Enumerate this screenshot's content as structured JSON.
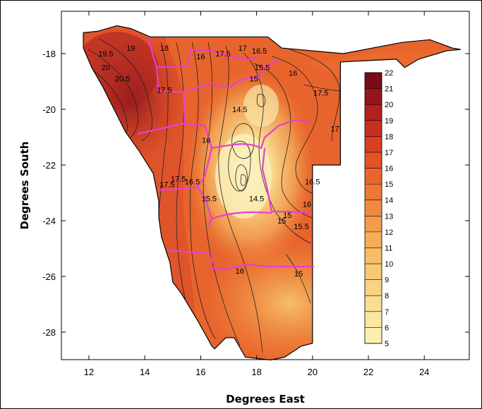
{
  "chart_data": {
    "type": "contour-map",
    "xlabel": "Degrees East",
    "ylabel": "Degrees South",
    "xlim": [
      11,
      25.5
    ],
    "ylim": [
      -29,
      -16.7
    ],
    "x_ticks": [
      12,
      14,
      16,
      18,
      20,
      22,
      24
    ],
    "y_ticks": [
      -18,
      -20,
      -22,
      -24,
      -26,
      -28
    ],
    "colorbar": {
      "min": 5,
      "max": 22,
      "labels": [
        22,
        21,
        20,
        19,
        18,
        17,
        16,
        15,
        14,
        13,
        12,
        11,
        10,
        9,
        8,
        7,
        6,
        5
      ],
      "colors": [
        "#fbf6c0",
        "#fbf0b0",
        "#fae7a0",
        "#f9de90",
        "#f8d482",
        "#f7c973",
        "#f6bc66",
        "#f5ad58",
        "#f39c4c",
        "#f18a40",
        "#ee7835",
        "#ea652c",
        "#e45226",
        "#d93f22",
        "#c92e20",
        "#b3201e",
        "#97141b",
        "#790c16"
      ]
    },
    "contour_labels": [
      {
        "text": "19",
        "lon": 13.5,
        "lat": -17.9
      },
      {
        "text": "19.5",
        "lon": 12.6,
        "lat": -18.1
      },
      {
        "text": "20",
        "lon": 12.6,
        "lat": -18.6
      },
      {
        "text": "20.5",
        "lon": 13.2,
        "lat": -19.0
      },
      {
        "text": "17.5",
        "lon": 14.7,
        "lat": -19.4
      },
      {
        "text": "18",
        "lon": 14.7,
        "lat": -17.9
      },
      {
        "text": "16",
        "lon": 16.0,
        "lat": -18.2
      },
      {
        "text": "17.5",
        "lon": 16.8,
        "lat": -18.1
      },
      {
        "text": "17",
        "lon": 17.5,
        "lat": -17.9
      },
      {
        "text": "16.5",
        "lon": 18.1,
        "lat": -18.0
      },
      {
        "text": "15.5",
        "lon": 18.2,
        "lat": -18.6
      },
      {
        "text": "15",
        "lon": 17.9,
        "lat": -19.0
      },
      {
        "text": "16",
        "lon": 19.3,
        "lat": -18.8
      },
      {
        "text": "17.5",
        "lon": 20.3,
        "lat": -19.5
      },
      {
        "text": "14.5",
        "lon": 17.4,
        "lat": -20.1
      },
      {
        "text": "17",
        "lon": 20.8,
        "lat": -20.8
      },
      {
        "text": "16",
        "lon": 16.2,
        "lat": -21.2
      },
      {
        "text": "16.5",
        "lon": 15.7,
        "lat": -22.7
      },
      {
        "text": "17.5",
        "lon": 15.2,
        "lat": -22.6
      },
      {
        "text": "17.5",
        "lon": 14.8,
        "lat": -22.8
      },
      {
        "text": "15.5",
        "lon": 16.3,
        "lat": -23.3
      },
      {
        "text": "16.5",
        "lon": 20.0,
        "lat": -22.7
      },
      {
        "text": "16",
        "lon": 19.8,
        "lat": -23.5
      },
      {
        "text": "15.5",
        "lon": 19.6,
        "lat": -24.3
      },
      {
        "text": "15",
        "lon": 19.1,
        "lat": -23.9
      },
      {
        "text": "14.5",
        "lon": 18.0,
        "lat": -23.3
      },
      {
        "text": "15",
        "lon": 18.9,
        "lat": -24.1
      },
      {
        "text": "16",
        "lon": 17.4,
        "lat": -25.9
      },
      {
        "text": "15",
        "lon": 19.5,
        "lat": -26.0
      }
    ]
  }
}
